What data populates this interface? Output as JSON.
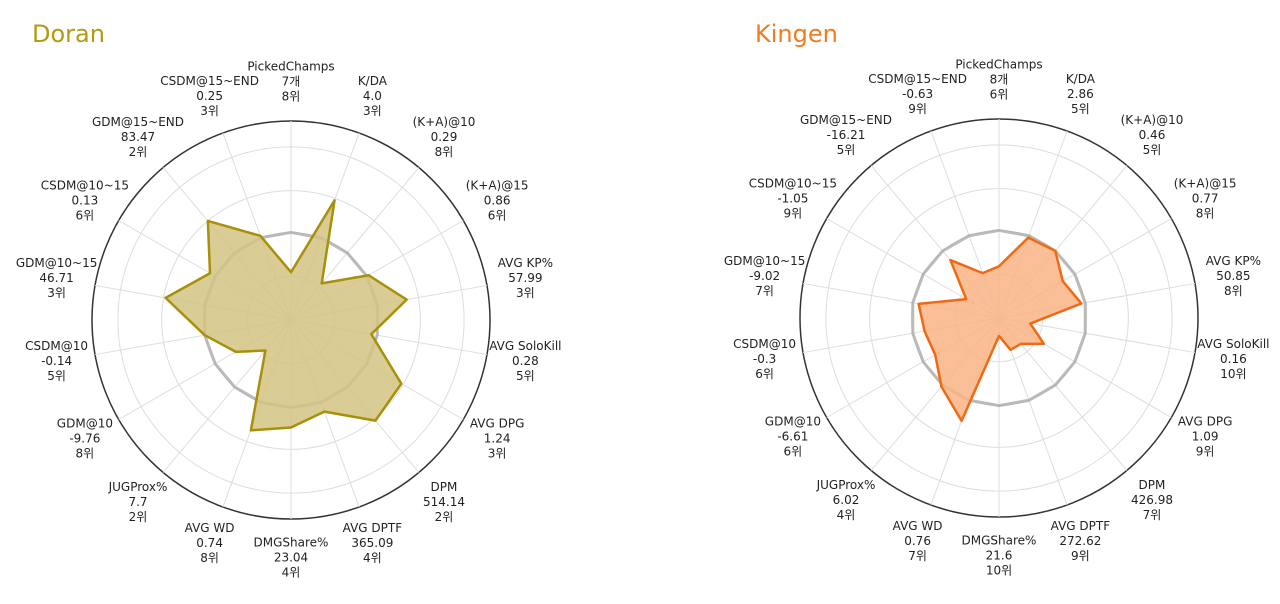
{
  "chart_data": [
    {
      "type": "radar",
      "title": "Doran",
      "title_color": "#b39a12",
      "color": "#a8900a",
      "fill": "#d4c382",
      "categories": [
        "PickedChamps",
        "K/DA",
        "(K+A)@10",
        "(K+A)@15",
        "AVG KP%",
        "AVG SoloKill",
        "AVG DPG",
        "DPM",
        "AVG DPTF",
        "DMGShare%",
        "AVG WD",
        "JUGProx%",
        "GDM@10",
        "CSDM@10",
        "GDM@10~15",
        "CSDM@10~15",
        "GDM@15~END",
        "CSDM@15~END"
      ],
      "stats": [
        "7개",
        "4.0",
        "0.29",
        "0.86",
        "57.99",
        "0.28",
        "1.24",
        "514.14",
        "365.09",
        "23.04",
        "0.74",
        "7.7",
        "-9.76",
        "-0.14",
        "46.71",
        "0.13",
        "83.47",
        "0.25"
      ],
      "ranks": [
        "8위",
        "3위",
        "8위",
        "6위",
        "3위",
        "5위",
        "3위",
        "2위",
        "4위",
        "4위",
        "8위",
        "2위",
        "8위",
        "5위",
        "3위",
        "6위",
        "2위",
        "3위"
      ],
      "values": [
        0.24,
        0.64,
        0.24,
        0.45,
        0.59,
        0.41,
        0.64,
        0.66,
        0.49,
        0.54,
        0.59,
        0.2,
        0.32,
        0.44,
        0.64,
        0.47,
        0.65,
        0.45
      ],
      "rlim": [
        0,
        1
      ],
      "rticks": [
        0.22,
        0.44,
        0.65,
        0.87,
        1
      ],
      "reference": 0.44,
      "grid": true
    },
    {
      "type": "radar",
      "title": "Kingen",
      "title_color": "#f07c22",
      "color": "#f06a14",
      "fill": "#f9b485",
      "categories": [
        "PickedChamps",
        "K/DA",
        "(K+A)@10",
        "(K+A)@15",
        "AVG KP%",
        "AVG SoloKill",
        "AVG DPG",
        "DPM",
        "AVG DPTF",
        "DMGShare%",
        "AVG WD",
        "JUGProx%",
        "GDM@10",
        "CSDM@10",
        "GDM@10~15",
        "CSDM@10~15",
        "GDM@15~END",
        "CSDM@15~END"
      ],
      "stats": [
        "8개",
        "2.86",
        "0.46",
        "0.77",
        "50.85",
        "0.16",
        "1.09",
        "426.98",
        "272.62",
        "21.6",
        "0.76",
        "6.02",
        "-6.61",
        "-0.3",
        "-9.02",
        "-1.05",
        "-16.21",
        "-0.63"
      ],
      "ranks": [
        "6위",
        "5위",
        "5위",
        "8위",
        "8위",
        "10위",
        "9위",
        "7위",
        "9위",
        "10위",
        "7위",
        "4위",
        "6위",
        "6위",
        "7위",
        "9위",
        "5위",
        "9위"
      ],
      "values": [
        0.26,
        0.43,
        0.44,
        0.37,
        0.42,
        0.16,
        0.26,
        0.17,
        0.17,
        0.09,
        0.55,
        0.45,
        0.37,
        0.38,
        0.41,
        0.19,
        0.38,
        0.24
      ],
      "rlim": [
        0,
        1
      ],
      "rticks": [
        0.22,
        0.44,
        0.65,
        0.87,
        1
      ],
      "reference": 0.44,
      "grid": true
    }
  ]
}
